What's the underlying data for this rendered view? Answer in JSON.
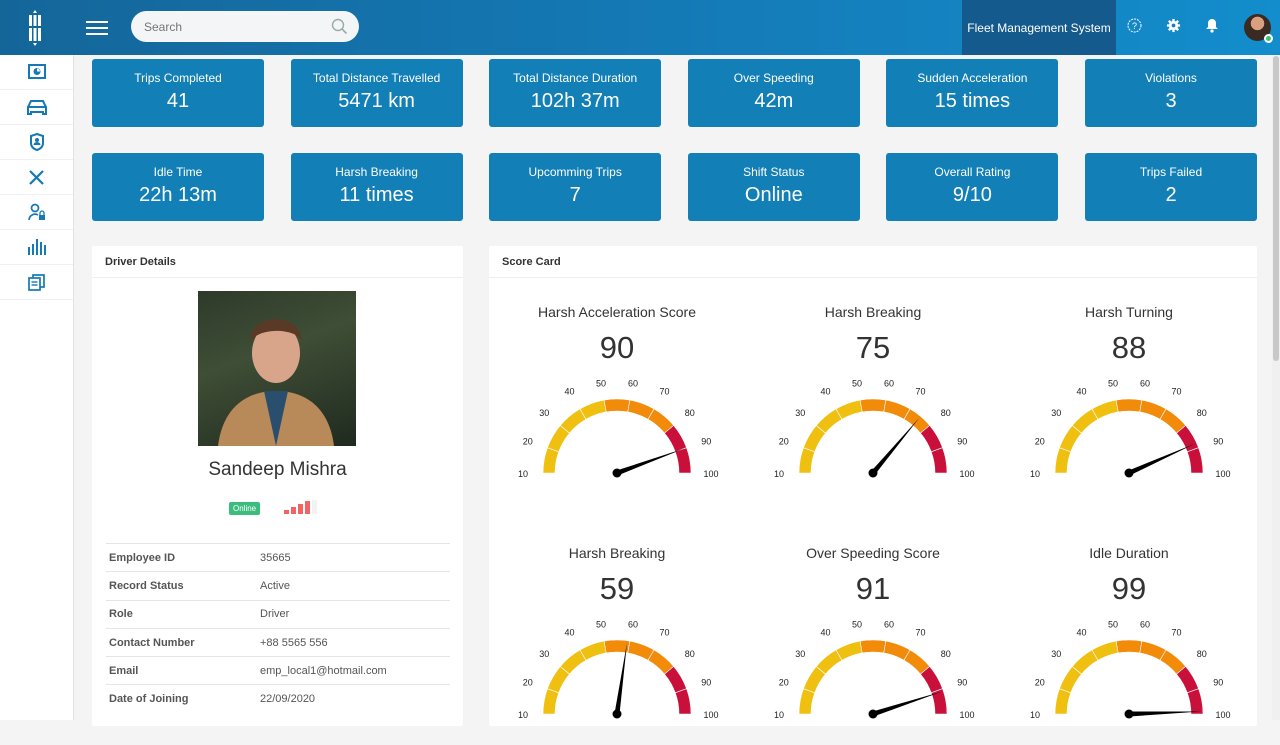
{
  "header": {
    "search_placeholder": "Search",
    "app_title": "Fleet Management System"
  },
  "sidebar": {
    "items": [
      "dashboard-icon",
      "car-icon",
      "shield-user-icon",
      "tools-icon",
      "user-lock-icon",
      "bar-chart-icon",
      "documents-icon"
    ]
  },
  "stats": [
    {
      "label": "Trips Completed",
      "value": "41"
    },
    {
      "label": "Total Distance Travelled",
      "value": "5471 km"
    },
    {
      "label": "Total Distance Duration",
      "value": "102h 37m"
    },
    {
      "label": "Over Speeding",
      "value": "42m"
    },
    {
      "label": "Sudden Acceleration",
      "value": "15 times"
    },
    {
      "label": "Violations",
      "value": "3"
    },
    {
      "label": "Idle Time",
      "value": "22h 13m"
    },
    {
      "label": "Harsh Breaking",
      "value": "11 times"
    },
    {
      "label": "Upcomming Trips",
      "value": "7"
    },
    {
      "label": "Shift Status",
      "value": "Online"
    },
    {
      "label": "Overall Rating",
      "value": "9/10"
    },
    {
      "label": "Trips Failed",
      "value": "2"
    }
  ],
  "driver": {
    "title": "Driver Details",
    "name": "Sandeep Mishra",
    "status": "Online",
    "signal_level": 4,
    "fields": [
      {
        "key": "Employee ID",
        "value": "35665"
      },
      {
        "key": "Record Status",
        "value": "Active"
      },
      {
        "key": "Role",
        "value": "Driver"
      },
      {
        "key": "Contact Number",
        "value": "+88 5565 556"
      },
      {
        "key": "Email",
        "value": "emp_local1@hotmail.com"
      },
      {
        "key": "Date of Joining",
        "value": "22/09/2020"
      }
    ]
  },
  "scorecard": {
    "title": "Score Card",
    "ticks": [
      "10",
      "20",
      "30",
      "40",
      "50",
      "60",
      "70",
      "80",
      "90",
      "100"
    ],
    "gauges": [
      {
        "label": "Harsh Acceleration Score",
        "value": 90
      },
      {
        "label": "Harsh Breaking",
        "value": 75
      },
      {
        "label": "Harsh Turning",
        "value": 88
      },
      {
        "label": "Harsh Breaking",
        "value": 59
      },
      {
        "label": "Over Speeding Score",
        "value": 91
      },
      {
        "label": "Idle Duration",
        "value": 99
      }
    ]
  },
  "colors": {
    "accent": "#127fb6",
    "yellow": "#f0c010",
    "orange": "#f28a0a",
    "red": "#c8103a"
  }
}
